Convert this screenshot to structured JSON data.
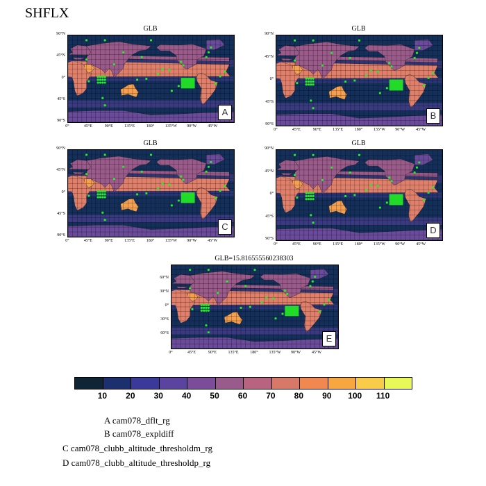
{
  "figure_title": "SHFLX",
  "colors": {
    "ocean": "#14305a",
    "land_warm": "#e0806a",
    "land_hot": "#f5a050",
    "land_mid": "#9a5a8a",
    "land_cool": "#6a4a9a",
    "marker": "#22ee22",
    "grid": "#000000"
  },
  "chart_data": [
    {
      "type": "heatmap",
      "title": "GLB",
      "panel_label": "A",
      "x_ticks": [
        "0°",
        "45°E",
        "90°E",
        "135°E",
        "180°",
        "135°W",
        "90°W",
        "45°W"
      ],
      "y_ticks": [
        "90°N",
        "45°N",
        "0°",
        "45°S",
        "90°S"
      ],
      "lon_range": [
        0,
        360
      ],
      "lat_range": [
        -90,
        90
      ]
    },
    {
      "type": "heatmap",
      "title": "GLB",
      "panel_label": "B",
      "x_ticks": [
        "0°",
        "45°E",
        "90°E",
        "135°E",
        "180°",
        "135°W",
        "90°W",
        "45°W"
      ],
      "y_ticks": [
        "90°N",
        "45°N",
        "0°",
        "45°S",
        "90°S"
      ],
      "lon_range": [
        0,
        360
      ],
      "lat_range": [
        -90,
        90
      ]
    },
    {
      "type": "heatmap",
      "title": "GLB",
      "panel_label": "C",
      "x_ticks": [
        "0°",
        "45°E",
        "90°E",
        "135°E",
        "180°",
        "135°W",
        "90°W",
        "45°W"
      ],
      "y_ticks": [
        "90°N",
        "45°N",
        "0°",
        "45°S",
        "90°S"
      ],
      "lon_range": [
        0,
        360
      ],
      "lat_range": [
        -90,
        90
      ]
    },
    {
      "type": "heatmap",
      "title": "GLB",
      "panel_label": "D",
      "x_ticks": [
        "0°",
        "45°E",
        "90°E",
        "135°E",
        "180°",
        "135°W",
        "90°W",
        "45°W"
      ],
      "y_ticks": [
        "90°N",
        "45°N",
        "0°",
        "45°S",
        "90°S"
      ],
      "lon_range": [
        0,
        360
      ],
      "lat_range": [
        -90,
        90
      ]
    },
    {
      "type": "heatmap",
      "title": "GLB=15.816555560238303",
      "panel_label": "E",
      "x_ticks": [
        "0°",
        "45°E",
        "90°E",
        "135°E",
        "180°",
        "135°W",
        "90°W",
        "45°W"
      ],
      "y_ticks": [
        "60°N",
        "30°N",
        "0°",
        "30°S",
        "60°S"
      ],
      "lon_range": [
        0,
        360
      ],
      "lat_range": [
        -90,
        90
      ]
    }
  ],
  "colorbar": {
    "colors": [
      "#0f2535",
      "#1c2f6e",
      "#3a3a9a",
      "#5a44a0",
      "#7a4c9a",
      "#995a8c",
      "#b86480",
      "#d87868",
      "#f08850",
      "#f8a640",
      "#f8cc48",
      "#e8f858"
    ],
    "labels": [
      "10",
      "20",
      "30",
      "40",
      "50",
      "60",
      "70",
      "80",
      "90",
      "100",
      "110"
    ]
  },
  "legend": [
    "A  cam078_dflt_rg",
    "B  cam078_expldiff",
    "C  cam078_clubb_altitude_thresholdm_rg",
    "D  cam078_clubb_altitude_thresholdp_rg"
  ]
}
